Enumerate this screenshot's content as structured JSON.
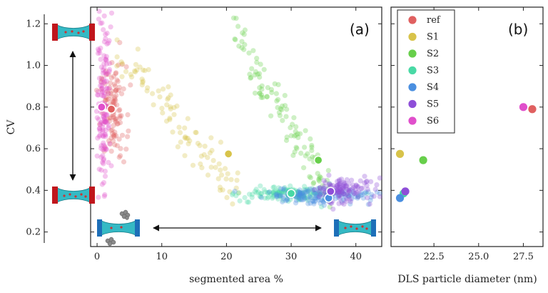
{
  "chart_data": [
    {
      "panel": "(a)",
      "type": "scatter",
      "xlabel": "segmented area %",
      "ylabel": "CV",
      "xlim": [
        -1,
        44
      ],
      "ylim": [
        0.13,
        1.28
      ],
      "xticks": [
        0,
        10,
        20,
        30,
        40
      ],
      "yticks": [
        0.2,
        0.4,
        0.6,
        0.8,
        1.0,
        1.2
      ],
      "series": [
        {
          "name": "ref",
          "color": "#e06060",
          "mean": [
            2.2,
            0.79
          ],
          "cloud": {
            "x_range": [
              0.5,
              4.5
            ],
            "y_range": [
              0.55,
              1.0
            ],
            "n": 110
          }
        },
        {
          "name": "S1",
          "color": "#d8c34a",
          "mean": [
            20.3,
            0.575
          ],
          "cloud": {
            "x_range": [
              3,
              22
            ],
            "y_range": [
              0.38,
              1.08
            ],
            "n": 95
          }
        },
        {
          "name": "S2",
          "color": "#67cf4b",
          "mean": [
            34.2,
            0.545
          ],
          "cloud": {
            "x_range": [
              21,
              36
            ],
            "y_range": [
              0.36,
              1.17
            ],
            "n": 110
          }
        },
        {
          "name": "S3",
          "color": "#49d9a5",
          "mean": [
            30.0,
            0.385
          ],
          "cloud": {
            "x_range": [
              23,
              37
            ],
            "y_range": [
              0.35,
              0.42
            ],
            "n": 140
          }
        },
        {
          "name": "S4",
          "color": "#4a8fe0",
          "mean": [
            35.8,
            0.363
          ],
          "cloud": {
            "x_range": [
              26,
              42.5
            ],
            "y_range": [
              0.34,
              0.41
            ],
            "n": 150
          }
        },
        {
          "name": "S5",
          "color": "#8e4ed8",
          "mean": [
            36.1,
            0.395
          ],
          "cloud": {
            "x_range": [
              33,
              42.5
            ],
            "y_range": [
              0.34,
              0.46
            ],
            "n": 120
          }
        },
        {
          "name": "S6",
          "color": "#e04fcb",
          "mean": [
            0.7,
            0.8
          ],
          "cloud": {
            "x_range": [
              0.0,
              2.0
            ],
            "y_range": [
              0.37,
              1.24
            ],
            "n": 140
          }
        }
      ],
      "annotations": [
        {
          "kind": "double-arrow",
          "direction": "vertical",
          "between_y": [
            0.4,
            1.16
          ]
        },
        {
          "kind": "double-arrow",
          "direction": "horizontal",
          "between_x": [
            10,
            40
          ]
        }
      ]
    },
    {
      "panel": "(b)",
      "type": "scatter",
      "xlabel": "DLS particle diameter (nm)",
      "xlim": [
        20.1,
        28.6
      ],
      "ylim": [
        0.13,
        1.28
      ],
      "xticks": [
        22.5,
        25.0,
        27.5
      ],
      "xtick_labels": [
        "22.5",
        "25.0",
        "27.5"
      ],
      "points": [
        {
          "name": "ref",
          "color": "#e06060",
          "x": 28.0,
          "y": 0.79
        },
        {
          "name": "S1",
          "color": "#d8c34a",
          "x": 20.6,
          "y": 0.575
        },
        {
          "name": "S2",
          "color": "#67cf4b",
          "x": 21.9,
          "y": 0.545
        },
        {
          "name": "S3",
          "color": "#49d9a5",
          "x": 20.8,
          "y": 0.385
        },
        {
          "name": "S4",
          "color": "#4a8fe0",
          "x": 20.6,
          "y": 0.363
        },
        {
          "name": "S5",
          "color": "#8e4ed8",
          "x": 20.9,
          "y": 0.395
        },
        {
          "name": "S6",
          "color": "#e04fcb",
          "x": 27.5,
          "y": 0.8
        }
      ],
      "legend": {
        "placement": "top-left",
        "entries": [
          "ref",
          "S1",
          "S2",
          "S3",
          "S4",
          "S5",
          "S6"
        ]
      }
    }
  ]
}
